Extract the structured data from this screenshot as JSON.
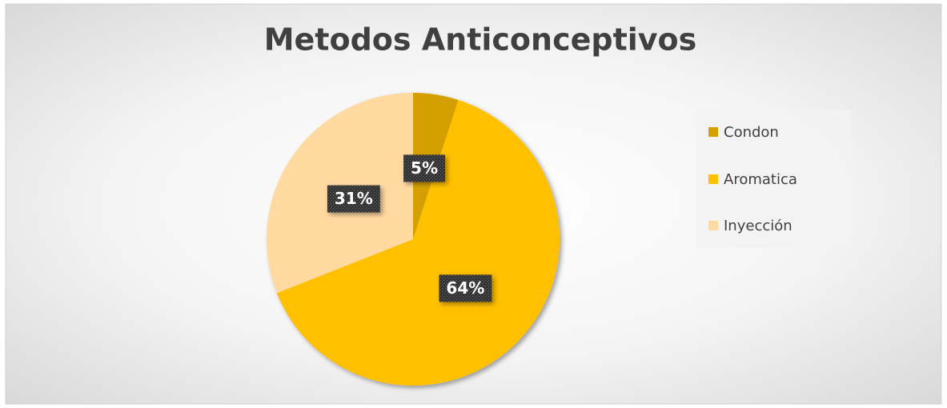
{
  "chart_data": {
    "type": "pie",
    "title": "Metodos Anticonceptivos",
    "categories": [
      "Condon",
      "Aromatica",
      "Inyección"
    ],
    "values": [
      5,
      64,
      31
    ],
    "value_labels": [
      "5%",
      "64%",
      "31%"
    ],
    "colors": [
      "#D4A000",
      "#FFC000",
      "#FFD9A0"
    ],
    "legend": "right"
  }
}
